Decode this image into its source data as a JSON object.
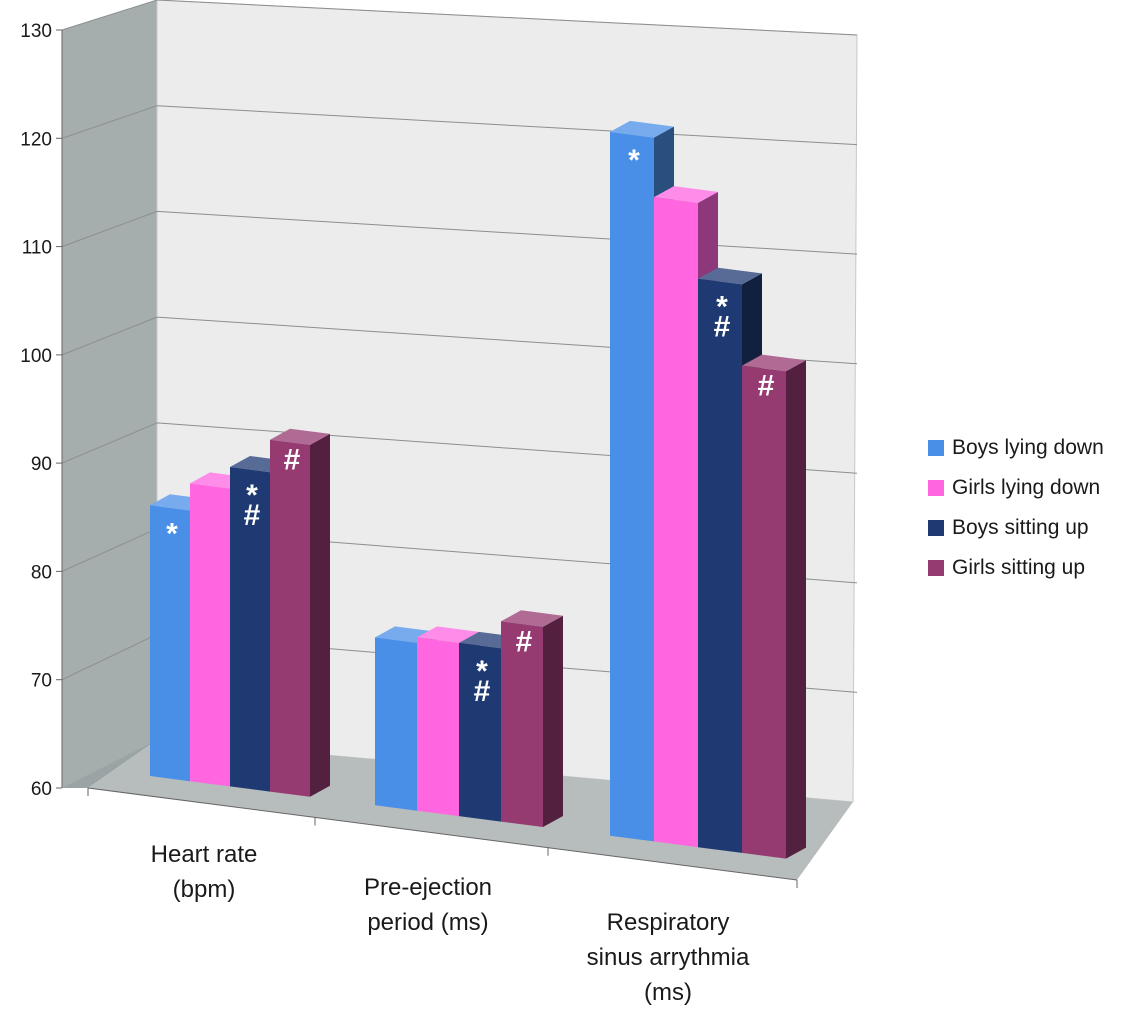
{
  "chart_data": {
    "type": "bar",
    "subtype": "3d-clustered-column",
    "categories": [
      [
        "Heart rate",
        "(bpm)"
      ],
      [
        "Pre-ejection",
        "period (ms)"
      ],
      [
        "Respiratory",
        "sinus arrythmia",
        "(ms)"
      ]
    ],
    "ylim": [
      60,
      130
    ],
    "yticks": [
      "60",
      "70",
      "80",
      "90",
      "100",
      "110",
      "120",
      "130"
    ],
    "grid": true,
    "legend_position": "right",
    "series": [
      {
        "name": "Boys lying down",
        "color": "#4a8fe7",
        "values": [
          85,
          75.5,
          125
        ],
        "marks": [
          [
            "*"
          ],
          [],
          [
            "*"
          ]
        ]
      },
      {
        "name": "Girls lying down",
        "color": "#ff66e0",
        "values": [
          87.5,
          76,
          119.5
        ],
        "marks": [
          [],
          [],
          []
        ]
      },
      {
        "name": "Boys sitting up",
        "color": "#1f3a73",
        "values": [
          89.5,
          76,
          112.5
        ],
        "marks": [
          [
            "*",
            "#"
          ],
          [
            "*",
            "#"
          ],
          [
            "*",
            "#"
          ]
        ]
      },
      {
        "name": "Girls sitting up",
        "color": "#963a72",
        "values": [
          92.5,
          78.5,
          105
        ],
        "marks": [
          [
            "#"
          ],
          [
            "#"
          ],
          [
            "#"
          ]
        ]
      }
    ]
  }
}
